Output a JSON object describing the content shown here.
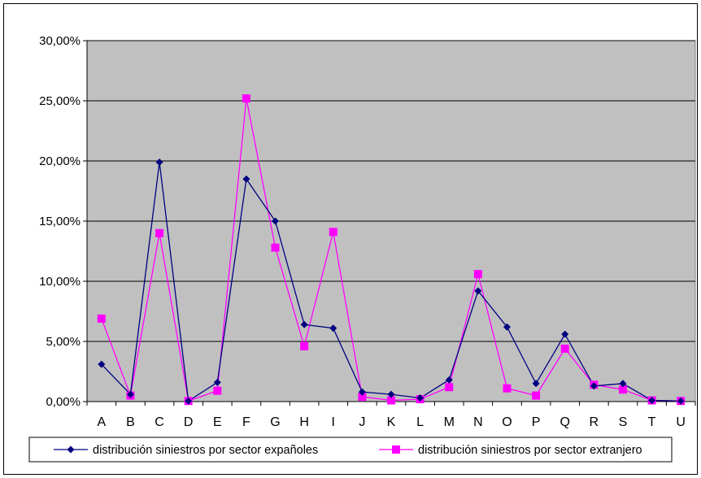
{
  "chart_data": {
    "type": "line",
    "categories": [
      "A",
      "B",
      "C",
      "D",
      "E",
      "F",
      "G",
      "H",
      "I",
      "J",
      "K",
      "L",
      "M",
      "N",
      "O",
      "P",
      "Q",
      "R",
      "S",
      "T",
      "U"
    ],
    "ylim": [
      0,
      30
    ],
    "y_ticks": [
      0,
      5,
      10,
      15,
      20,
      25,
      30
    ],
    "y_tick_labels": [
      "0,00%",
      "5,00%",
      "10,00%",
      "15,00%",
      "20,00%",
      "25,00%",
      "30,00%"
    ],
    "grid": true,
    "plot_background": "#C0C0C0",
    "legend_position": "bottom",
    "series": [
      {
        "name": "distribución siniestros por sector expañoles",
        "color": "#000080",
        "marker": "diamond",
        "values": [
          3.1,
          0.6,
          19.9,
          0.05,
          1.6,
          18.5,
          15.0,
          6.4,
          6.1,
          0.8,
          0.6,
          0.3,
          1.8,
          9.2,
          6.2,
          1.5,
          5.6,
          1.3,
          1.5,
          0.1,
          0.05
        ]
      },
      {
        "name": "distribución siniestros por sector extranjero",
        "color": "#FF00FF",
        "marker": "square",
        "values": [
          6.9,
          0.5,
          14.0,
          0.05,
          0.9,
          25.2,
          12.8,
          4.6,
          14.1,
          0.4,
          0.1,
          0.2,
          1.2,
          10.6,
          1.1,
          0.5,
          4.4,
          1.4,
          1.0,
          0.1,
          0.05
        ]
      }
    ]
  }
}
